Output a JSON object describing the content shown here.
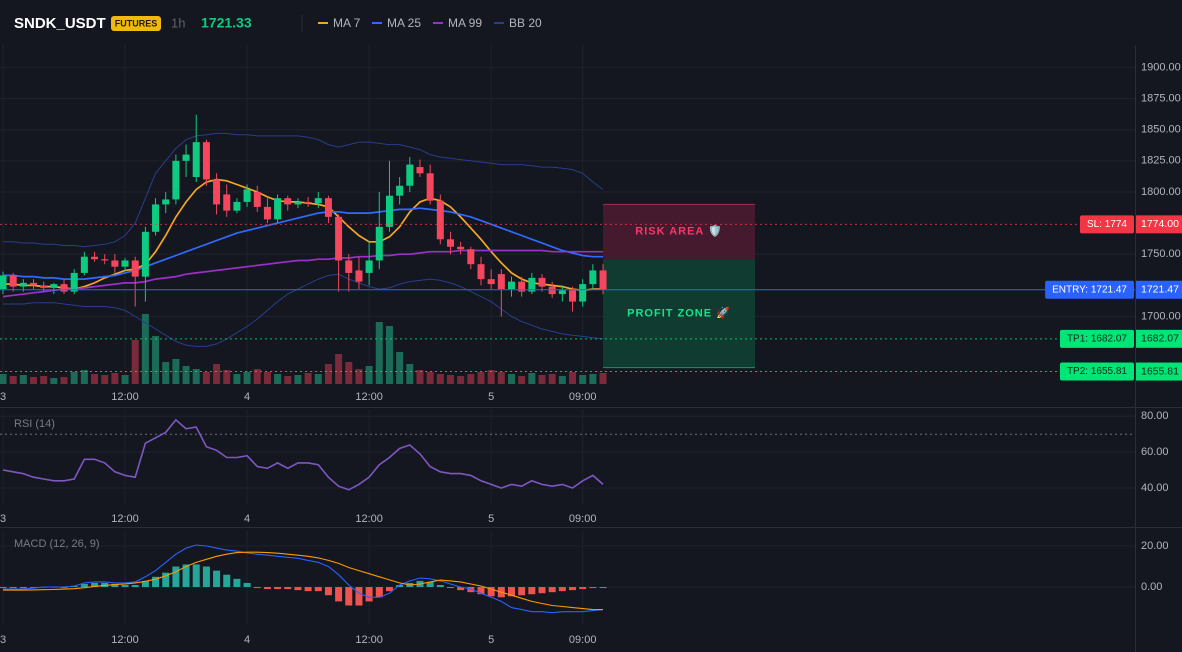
{
  "header": {
    "symbol": "SNDK_USDT",
    "badge": "FUTURES",
    "interval": "1h",
    "last_price": 1721.33
  },
  "chart_data": [
    {
      "type": "candlestick",
      "categories": [
        "3",
        null,
        null,
        null,
        null,
        null,
        null,
        null,
        null,
        null,
        null,
        null,
        "12:00",
        null,
        null,
        null,
        null,
        null,
        null,
        null,
        null,
        null,
        null,
        null,
        "4",
        null,
        null,
        null,
        null,
        null,
        null,
        null,
        null,
        null,
        null,
        null,
        "12:00",
        null,
        null,
        null,
        null,
        null,
        null,
        null,
        null,
        null,
        null,
        null,
        "5",
        null,
        null,
        null,
        null,
        null,
        null,
        null,
        null,
        "09:00",
        null,
        null
      ],
      "open": [
        1722,
        1733,
        1724,
        1727,
        1725,
        1723,
        1726,
        1720,
        1735,
        1748,
        1746,
        1745,
        1740,
        1745,
        1732,
        1768,
        1790,
        1794,
        1825,
        1812,
        1840,
        1810,
        1798,
        1785,
        1792,
        1800,
        1788,
        1778,
        1795,
        1790,
        1792,
        1791,
        1795,
        1780,
        1745,
        1737,
        1735,
        1745,
        1772,
        1797,
        1805,
        1820,
        1815,
        1793,
        1762,
        1756,
        1754,
        1742,
        1730,
        1734,
        1722,
        1728,
        1720,
        1731,
        1724,
        1718,
        1721,
        1712,
        1726,
        1737
      ],
      "high": [
        1736,
        1735,
        1730,
        1730,
        1728,
        1727,
        1730,
        1738,
        1752,
        1752,
        1750,
        1750,
        1747,
        1748,
        1772,
        1795,
        1800,
        1830,
        1838,
        1862,
        1842,
        1815,
        1806,
        1795,
        1806,
        1805,
        1795,
        1798,
        1797,
        1795,
        1796,
        1800,
        1797,
        1782,
        1750,
        1748,
        1760,
        1800,
        1825,
        1812,
        1828,
        1826,
        1822,
        1798,
        1768,
        1760,
        1756,
        1748,
        1738,
        1738,
        1732,
        1732,
        1735,
        1734,
        1728,
        1725,
        1724,
        1730,
        1742,
        1742
      ],
      "low": [
        1718,
        1720,
        1720,
        1722,
        1720,
        1718,
        1718,
        1718,
        1733,
        1744,
        1742,
        1735,
        1736,
        1708,
        1712,
        1765,
        1783,
        1790,
        1812,
        1808,
        1805,
        1782,
        1780,
        1783,
        1788,
        1784,
        1775,
        1775,
        1785,
        1787,
        1788,
        1787,
        1775,
        1720,
        1720,
        1722,
        1725,
        1738,
        1768,
        1790,
        1800,
        1812,
        1790,
        1758,
        1750,
        1750,
        1738,
        1725,
        1722,
        1700,
        1716,
        1716,
        1718,
        1720,
        1715,
        1712,
        1704,
        1708,
        1722,
        1718
      ],
      "close": [
        1733,
        1724,
        1727,
        1725,
        1723,
        1726,
        1720,
        1735,
        1748,
        1746,
        1745,
        1740,
        1745,
        1732,
        1768,
        1790,
        1794,
        1825,
        1830,
        1840,
        1810,
        1790,
        1785,
        1792,
        1802,
        1788,
        1778,
        1795,
        1790,
        1792,
        1791,
        1795,
        1780,
        1745,
        1735,
        1728,
        1745,
        1772,
        1797,
        1805,
        1822,
        1815,
        1793,
        1762,
        1756,
        1754,
        1742,
        1730,
        1726,
        1722,
        1728,
        1720,
        1731,
        1724,
        1718,
        1721,
        1712,
        1726,
        1737,
        1721.33
      ],
      "up_color": "#0ecb81",
      "down_color": "#f6465d",
      "volume": [
        10,
        8,
        9,
        7,
        8,
        6,
        7,
        12,
        14,
        10,
        9,
        11,
        9,
        44,
        70,
        48,
        22,
        25,
        18,
        15,
        12,
        20,
        14,
        10,
        12,
        15,
        12,
        10,
        8,
        9,
        11,
        10,
        20,
        30,
        22,
        15,
        18,
        62,
        58,
        32,
        20,
        14,
        12,
        10,
        9,
        8,
        10,
        12,
        14,
        12,
        10,
        8,
        11,
        9,
        10,
        8,
        12,
        9,
        10,
        11
      ],
      "volume_up_color": "#1b6b58",
      "volume_down_color": "#7a2a38",
      "series": [
        {
          "name": "MA 7",
          "color": "#f5a623",
          "values": [
            1726,
            1726,
            1725,
            1725,
            1724,
            1724,
            1723,
            1722,
            1724,
            1727,
            1731,
            1734,
            1737,
            1738,
            1742,
            1752,
            1765,
            1780,
            1792,
            1802,
            1808,
            1810,
            1809,
            1806,
            1803,
            1800,
            1796,
            1793,
            1792,
            1792,
            1791,
            1790,
            1788,
            1780,
            1772,
            1765,
            1760,
            1760,
            1764,
            1772,
            1784,
            1792,
            1795,
            1793,
            1788,
            1780,
            1771,
            1762,
            1752,
            1743,
            1735,
            1730,
            1727,
            1726,
            1725,
            1724,
            1722,
            1721,
            1722,
            1722
          ]
        },
        {
          "name": "MA 25",
          "color": "#2f6bff",
          "values": [
            1733,
            1733,
            1732,
            1732,
            1731,
            1731,
            1730,
            1730,
            1730,
            1731,
            1732,
            1733,
            1735,
            1737,
            1740,
            1743,
            1746,
            1749,
            1752,
            1755,
            1758,
            1761,
            1764,
            1767,
            1769,
            1771,
            1773,
            1775,
            1777,
            1779,
            1781,
            1783,
            1784,
            1784,
            1783,
            1783,
            1783,
            1784,
            1785,
            1786,
            1786,
            1787,
            1786,
            1785,
            1784,
            1782,
            1780,
            1777,
            1774,
            1771,
            1768,
            1765,
            1762,
            1759,
            1756,
            1753,
            1751,
            1749,
            1748,
            1748
          ]
        },
        {
          "name": "MA 99",
          "color": "#9b30c8",
          "values": [
            1716,
            1717,
            1718,
            1719,
            1720,
            1721,
            1722,
            1722,
            1723,
            1724,
            1725,
            1726,
            1727,
            1727,
            1728,
            1730,
            1731,
            1732,
            1734,
            1735,
            1736,
            1737,
            1738,
            1739,
            1740,
            1741,
            1742,
            1743,
            1744,
            1745,
            1745,
            1746,
            1746,
            1747,
            1747,
            1748,
            1748,
            1749,
            1749,
            1750,
            1750,
            1751,
            1752,
            1752,
            1752,
            1753,
            1753,
            1753,
            1753,
            1753,
            1753,
            1753,
            1753,
            1753,
            1752,
            1752,
            1752,
            1752,
            1752,
            1752
          ]
        },
        {
          "name": "BB 20",
          "color": "#2b3d8c",
          "upper": [
            1760,
            1760,
            1759,
            1759,
            1758,
            1758,
            1757,
            1757,
            1756,
            1757,
            1758,
            1760,
            1765,
            1775,
            1795,
            1815,
            1825,
            1835,
            1842,
            1845,
            1846,
            1847,
            1847,
            1846,
            1846,
            1845,
            1845,
            1845,
            1845,
            1845,
            1844,
            1842,
            1838,
            1836,
            1838,
            1840,
            1840,
            1839,
            1838,
            1838,
            1836,
            1834,
            1830,
            1828,
            1827,
            1826,
            1825,
            1824,
            1823,
            1822,
            1822,
            1822,
            1821,
            1820,
            1820,
            1819,
            1818,
            1815,
            1808,
            1802
          ],
          "lower": [
            1710,
            1710,
            1710,
            1711,
            1711,
            1711,
            1710,
            1709,
            1708,
            1708,
            1708,
            1707,
            1705,
            1700,
            1695,
            1690,
            1685,
            1680,
            1677,
            1676,
            1676,
            1678,
            1682,
            1687,
            1692,
            1698,
            1705,
            1712,
            1718,
            1722,
            1726,
            1730,
            1733,
            1734,
            1730,
            1727,
            1724,
            1722,
            1723,
            1726,
            1728,
            1729,
            1730,
            1729,
            1727,
            1724,
            1720,
            1716,
            1712,
            1706,
            1700,
            1696,
            1693,
            1690,
            1688,
            1686,
            1685,
            1684,
            1683,
            1682
          ]
        }
      ],
      "ylim": [
        1645,
        1918
      ],
      "yticks": [
        {
          "value": 1900,
          "label": "1900.00"
        },
        {
          "value": 1875,
          "label": "1875.00"
        },
        {
          "value": 1850,
          "label": "1850.00"
        },
        {
          "value": 1825,
          "label": "1825.00"
        },
        {
          "value": 1800,
          "label": "1800.00"
        },
        {
          "value": 1750,
          "label": "1750.00"
        },
        {
          "value": 1700,
          "label": "1700.00"
        }
      ],
      "grid": true,
      "levels": [
        {
          "value": 1774,
          "label": "SL: 1774",
          "price_label": "1774.00",
          "color": "#f23645",
          "text_color": "#ffffff",
          "dashed": true
        },
        {
          "value": 1721.47,
          "label": "ENTRY: 1721.47",
          "price_label": "1721.47",
          "color": "#2962ff",
          "text_color": "#ffffff",
          "dashed": false
        },
        {
          "value": 1682.07,
          "label": "TP1: 1682.07",
          "price_label": "1682.07",
          "color": "#00e676",
          "text_color": "#0b2a18",
          "dashed": true
        },
        {
          "value": 1655.81,
          "label": "TP2: 1655.81",
          "price_label": "1655.81",
          "color": "#00e676",
          "text_color": "#0b2a18",
          "dashed": true
        }
      ],
      "zones": [
        {
          "label": "RISK AREA 🛡️",
          "top": 1790,
          "bottom": 1746,
          "color": "#f23a6b",
          "fill": "#4a1a30"
        },
        {
          "label": "PROFIT ZONE 🚀",
          "top": 1746,
          "bottom": 1659,
          "color": "#19e08a",
          "fill": "#0f3f33"
        }
      ]
    },
    {
      "type": "line",
      "title": "RSI (14)",
      "categories": [
        "3",
        null,
        null,
        null,
        null,
        null,
        null,
        null,
        null,
        null,
        null,
        null,
        "12:00",
        null,
        null,
        null,
        null,
        null,
        null,
        null,
        null,
        null,
        null,
        null,
        "4",
        null,
        null,
        null,
        null,
        null,
        null,
        null,
        null,
        null,
        null,
        null,
        "12:00",
        null,
        null,
        null,
        null,
        null,
        null,
        null,
        null,
        null,
        null,
        null,
        "5",
        null,
        null,
        null,
        null,
        null,
        null,
        null,
        null,
        "09:00",
        null,
        null
      ],
      "values": [
        50,
        49,
        48,
        46,
        45,
        44,
        44,
        45,
        56,
        56,
        54,
        49,
        47,
        46,
        65,
        68,
        71,
        78,
        73,
        74,
        63,
        61,
        57,
        57,
        58,
        52,
        51,
        54,
        51,
        54,
        54,
        53,
        46,
        41,
        39,
        42,
        46,
        53,
        57,
        62,
        64,
        59,
        52,
        49,
        48,
        48,
        47,
        44,
        42,
        40,
        42,
        41,
        44,
        42,
        41,
        42,
        40,
        44,
        47,
        42
      ],
      "color": "#7e57c2",
      "ylim": [
        30.5,
        83.5
      ],
      "yticks": [
        {
          "value": 80,
          "label": "80.00"
        },
        {
          "value": 60,
          "label": "60.00"
        },
        {
          "value": 40,
          "label": "40.00"
        }
      ],
      "levels": [
        70
      ]
    },
    {
      "type": "macd",
      "title": "MACD (12, 26, 9)",
      "categories": [
        "3",
        null,
        null,
        null,
        null,
        null,
        null,
        null,
        null,
        null,
        null,
        null,
        "12:00",
        null,
        null,
        null,
        null,
        null,
        null,
        null,
        null,
        null,
        null,
        null,
        "4",
        null,
        null,
        null,
        null,
        null,
        null,
        null,
        null,
        null,
        null,
        null,
        "12:00",
        null,
        null,
        null,
        null,
        null,
        null,
        null,
        null,
        null,
        null,
        null,
        "5",
        null,
        null,
        null,
        null,
        null,
        null,
        null,
        null,
        "09:00",
        null,
        null
      ],
      "histogram": {
        "up_color": "#26a69a",
        "down_color": "#ef5350",
        "values": [
          -0.5,
          -0.5,
          -0.5,
          -0.5,
          -0.3,
          -0.3,
          -0.5,
          0.5,
          1.5,
          2,
          2,
          1.5,
          1,
          1,
          3,
          5,
          7,
          10,
          11,
          11,
          10,
          8,
          6,
          4,
          2,
          -0.5,
          -1,
          -1,
          -1,
          -1.5,
          -2,
          -2,
          -4,
          -7,
          -9,
          -9,
          -7,
          -5,
          -2,
          1,
          2,
          3,
          2.5,
          1,
          -0.5,
          -1.5,
          -2.5,
          -3.5,
          -4.5,
          -5,
          -4.5,
          -4,
          -3.5,
          -3,
          -2.5,
          -2,
          -1.5,
          -1,
          -0.5,
          -0.5
        ]
      },
      "macd": {
        "color": "#2962ff",
        "values": [
          -1,
          -1,
          -1,
          -0.5,
          0,
          0,
          0,
          0.5,
          2,
          2.5,
          2.5,
          2,
          2,
          2.5,
          5,
          8,
          12,
          16,
          19,
          20.5,
          20,
          19,
          18,
          17.5,
          16.6,
          16,
          15.5,
          15,
          14.5,
          14,
          13,
          12,
          10,
          6,
          1,
          -3,
          -5,
          -5,
          -3,
          1,
          3,
          4.4,
          4,
          3,
          1.5,
          0,
          -1,
          -3,
          -5,
          -7,
          -10,
          -11,
          -12,
          -12,
          -12.5,
          -12,
          -12,
          -12,
          -11.5,
          -11
        ]
      },
      "signal": {
        "color": "#ff9800",
        "values": [
          -1.5,
          -1.5,
          -1.5,
          -1.4,
          -1.3,
          -1.2,
          -1,
          -0.8,
          -0.3,
          0.3,
          0.8,
          1.2,
          1.5,
          2,
          2.8,
          3.8,
          5.5,
          7.5,
          10,
          12,
          13.5,
          15,
          16,
          16.8,
          17,
          17,
          16.8,
          16.5,
          16,
          15.5,
          15,
          14.2,
          13,
          11.5,
          9.5,
          8,
          6.5,
          5,
          3.5,
          2,
          1,
          1.5,
          2.5,
          3.4,
          3,
          2.5,
          1.5,
          0.5,
          -1,
          -2.5,
          -4,
          -5.5,
          -7,
          -8,
          -9,
          -9.5,
          -10,
          -10.5,
          -11,
          -11
        ]
      },
      "ylim": [
        -18.5,
        27.8
      ],
      "yticks": [
        {
          "value": 20,
          "label": "20.00"
        },
        {
          "value": 0,
          "label": "0.00"
        }
      ]
    }
  ]
}
